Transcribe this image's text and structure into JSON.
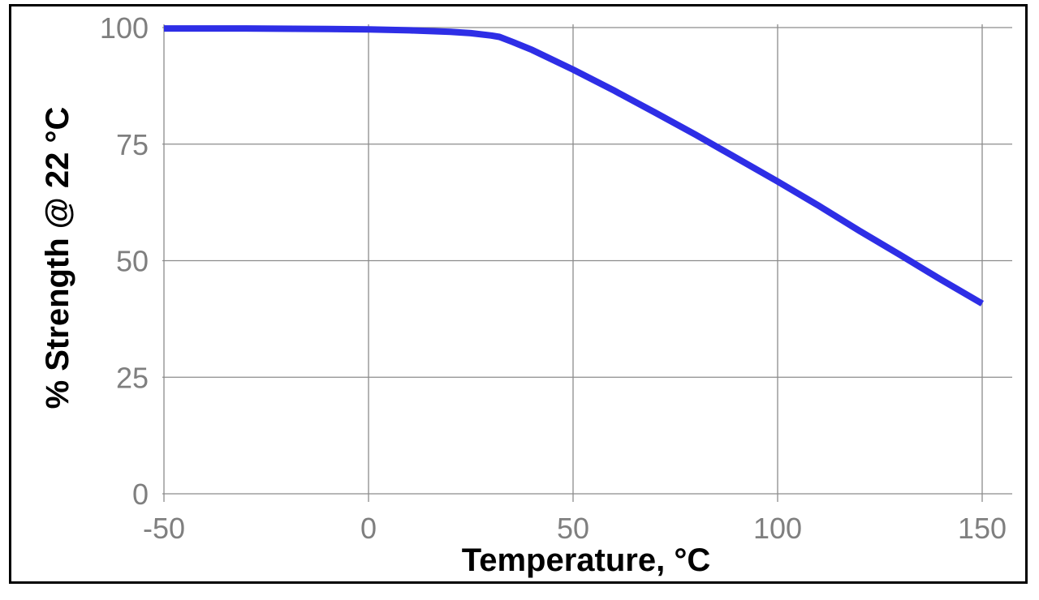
{
  "chart_data": {
    "type": "line",
    "title": "",
    "xlabel": "Temperature, °C",
    "ylabel": "% Strength @ 22 °C",
    "xlim": [
      -50,
      150
    ],
    "ylim": [
      0,
      100
    ],
    "x_ticks": [
      -50,
      0,
      50,
      100,
      150
    ],
    "y_ticks": [
      0,
      25,
      50,
      75,
      100
    ],
    "x_tick_labels": [
      "-50",
      "0",
      "50",
      "100",
      "150"
    ],
    "y_tick_labels": [
      "0",
      "25",
      "50",
      "75",
      "100"
    ],
    "grid": true,
    "legend": "none",
    "series": [
      {
        "color": "#2e2ee6",
        "x": [
          -50,
          -30,
          -10,
          0,
          10,
          20,
          25,
          30,
          32,
          35,
          40,
          50,
          60,
          70,
          80,
          90,
          100,
          110,
          120,
          130,
          140,
          150
        ],
        "y": [
          99.8,
          99.8,
          99.7,
          99.6,
          99.4,
          99.1,
          98.8,
          98.3,
          98.0,
          97.0,
          95.2,
          91.0,
          86.5,
          81.8,
          77.0,
          72.0,
          67.0,
          61.8,
          56.4,
          51.2,
          45.9,
          40.8
        ]
      }
    ]
  }
}
